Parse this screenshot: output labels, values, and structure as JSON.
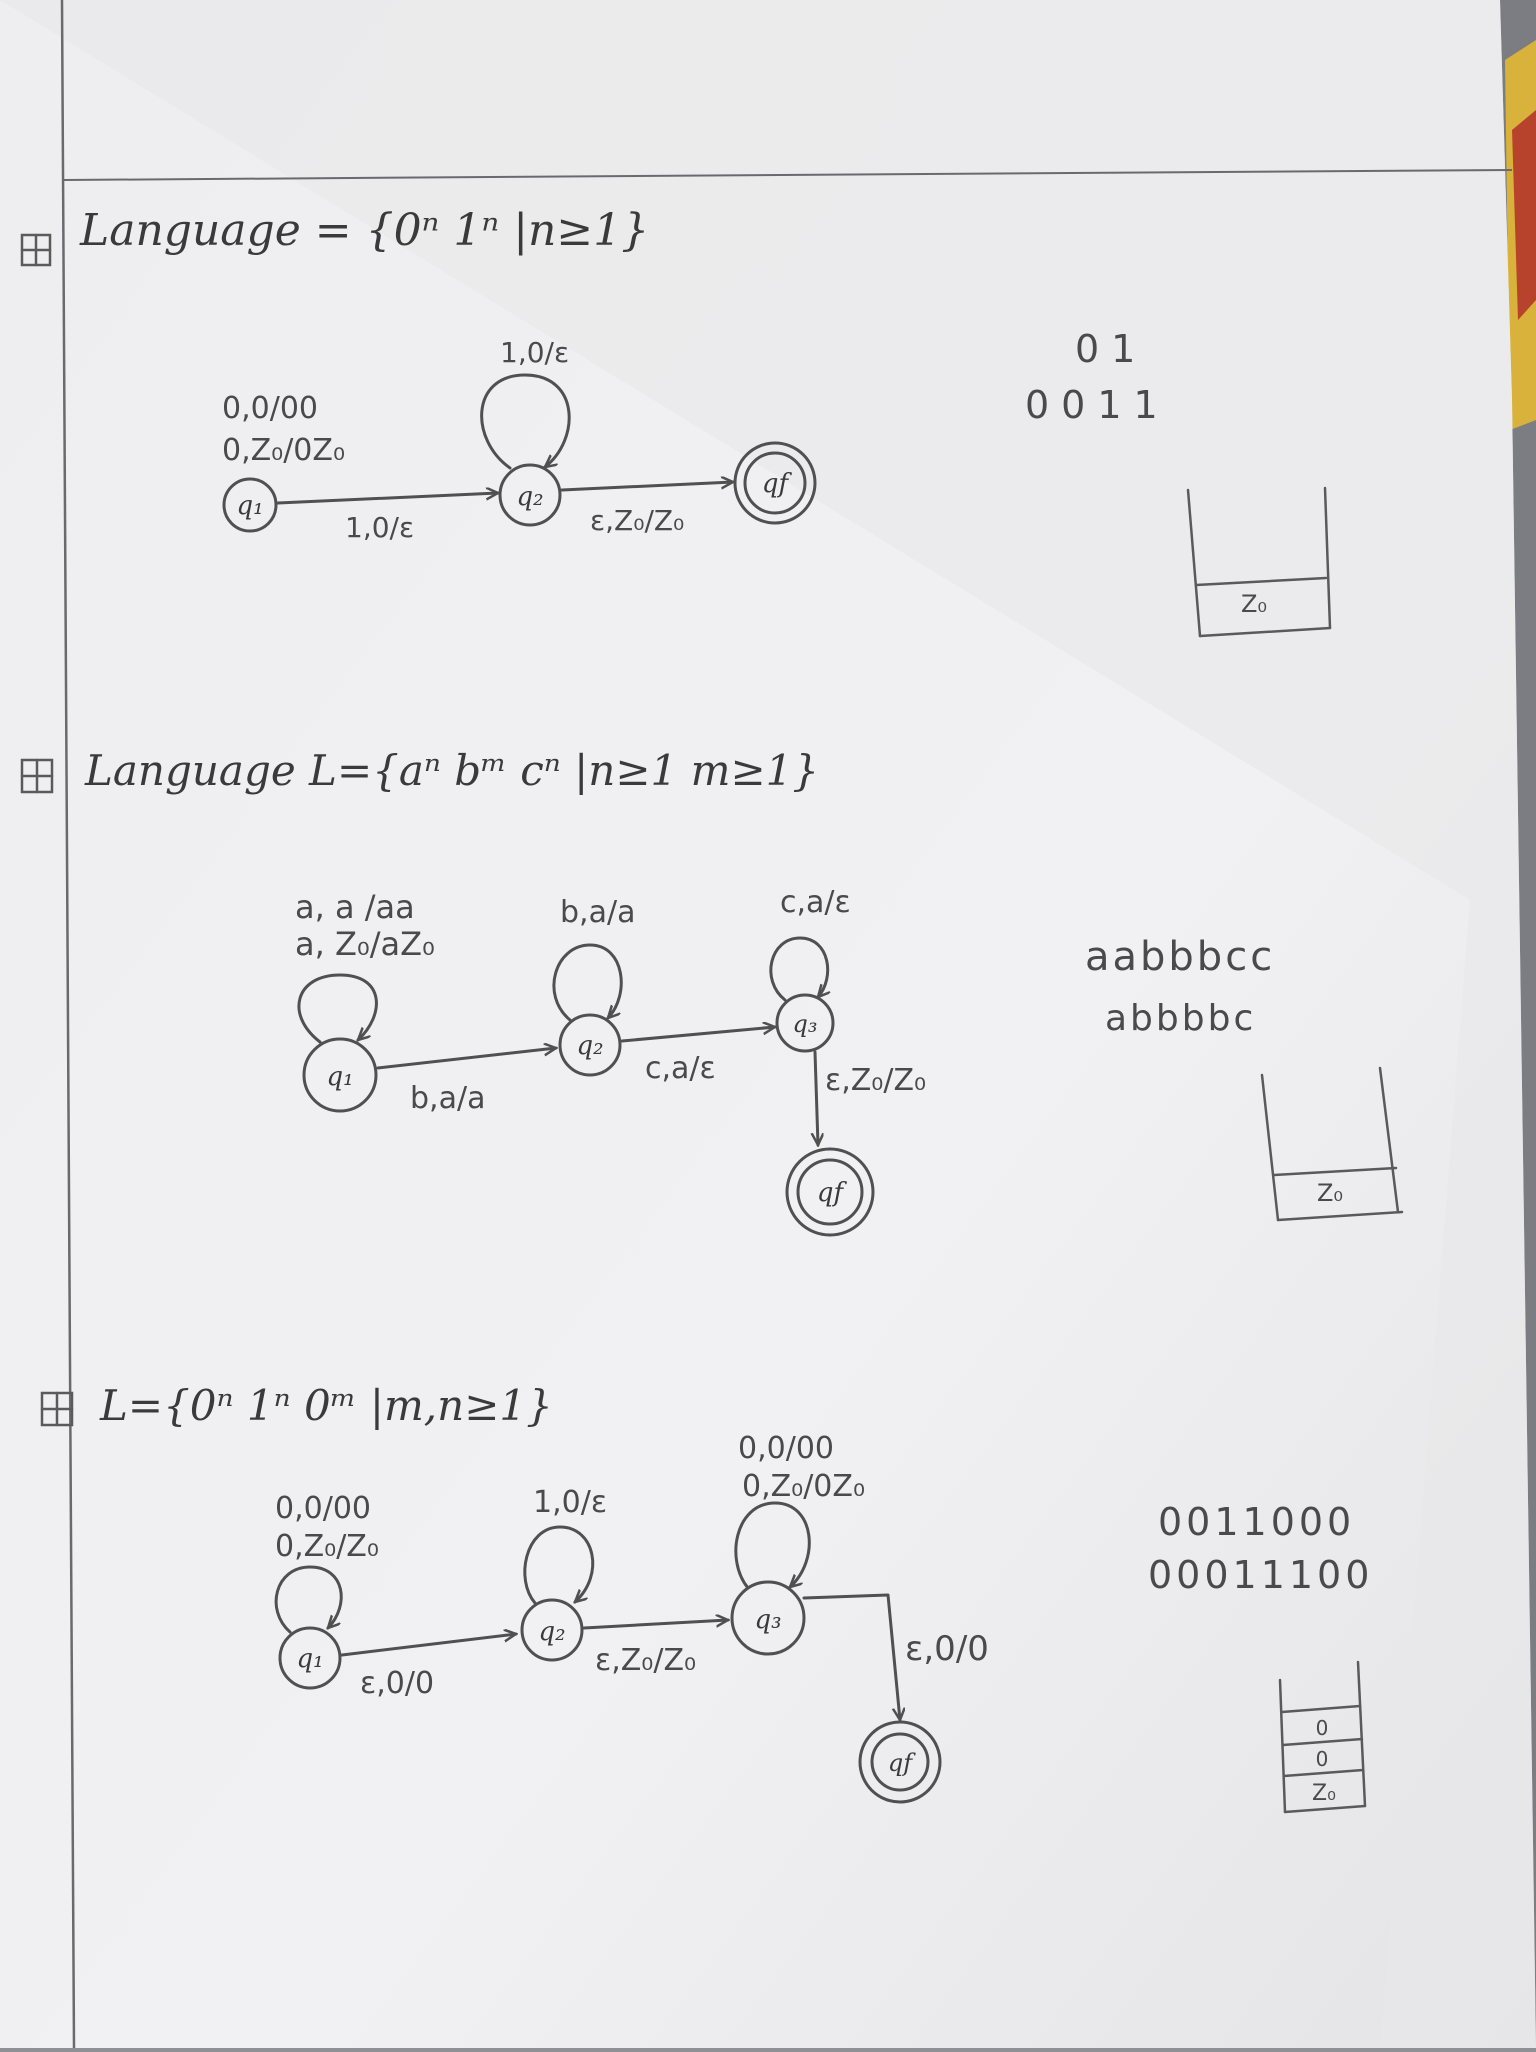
{
  "colors": {
    "paper": "#efeff1",
    "ink": "#4a4a4a",
    "margin_line": "#6a6a6e"
  },
  "problems": [
    {
      "title": "Language = {0ⁿ 1ⁿ |n≥1}",
      "states": [
        "q₁",
        "q₂",
        "qf"
      ],
      "transitions": {
        "q1_loop": [
          "0,0/00",
          "0,Z₀/0Z₀"
        ],
        "q1_q2": "1,0/ε",
        "q2_loop": "1,0/ε",
        "q2_qf": "ε,Z₀/Z₀"
      },
      "examples": [
        "01",
        "0011"
      ],
      "stack": [
        "Z₀"
      ]
    },
    {
      "title": "Language L={aⁿ bᵐ cⁿ |n≥1 m≥1}",
      "states": [
        "q₁",
        "q₂",
        "q₃",
        "qf"
      ],
      "transitions": {
        "q1_loop": [
          "a, a /aa",
          "a, Z₀/aZ₀"
        ],
        "q1_q2": "b,a/a",
        "q2_loop": "b,a/a",
        "q2_q3": "c,a/ε",
        "q3_loop": "c,a/ε",
        "q3_qf": "ε,Z₀/Z₀"
      },
      "examples": [
        "aabbbcc",
        "abbbbc"
      ],
      "stack": [
        "Z₀"
      ]
    },
    {
      "title": "L={0ⁿ 1ⁿ 0ᵐ |m,n≥1}",
      "states": [
        "q₁",
        "q₂",
        "q₃",
        "qf"
      ],
      "transitions": {
        "q1_loop": [
          "0,0/00",
          "0,Z₀/Z₀"
        ],
        "q1_q2": "ε,0/0",
        "q2_loop": "1,0/ε",
        "q2_q3": "ε,Z₀/Z₀",
        "q3_loop": [
          "0,0/00",
          "0,Z₀/0Z₀"
        ],
        "q3_qf": "ε,0/0"
      },
      "examples": [
        "0011000",
        "00011100"
      ],
      "stack": [
        "0",
        "0",
        "Z₀"
      ]
    }
  ]
}
